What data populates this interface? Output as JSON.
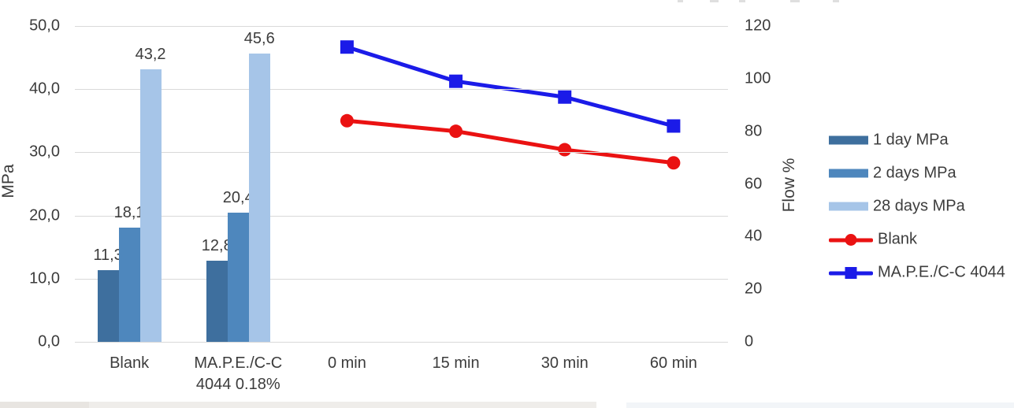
{
  "chart_data": {
    "type": "combo-bar-line",
    "legend_position": "right",
    "grid": true,
    "gridline_color": "#d9d9d9",
    "text_color": "#3c3c3c",
    "left_axis": {
      "label": "MPa",
      "min": 0,
      "max": 50,
      "ticks": [
        "50,0",
        "40,0",
        "30,0",
        "20,0",
        "10,0",
        "0,0"
      ]
    },
    "right_axis": {
      "label": "Flow %",
      "min": 0,
      "max": 120,
      "ticks": [
        "120",
        "100",
        "80",
        "60",
        "40",
        "20",
        "0"
      ]
    },
    "categories": [
      [
        "Blank"
      ],
      [
        "MA.P.E./C-C",
        "4044 0.18%"
      ],
      [
        "0 min"
      ],
      [
        "15 min"
      ],
      [
        "30 min"
      ],
      [
        "60 min"
      ]
    ],
    "bar_series": [
      {
        "name": "1 day MPa",
        "color": "#3e6f9e",
        "slots": [
          0,
          1
        ],
        "values": [
          11.3,
          12.8
        ],
        "value_labels": [
          "11,3",
          "12,8"
        ]
      },
      {
        "name": "2 days MPa",
        "color": "#4e87bd",
        "slots": [
          0,
          1
        ],
        "values": [
          18.1,
          20.4
        ],
        "value_labels": [
          "18,1",
          "20,4"
        ]
      },
      {
        "name": "28 days MPa",
        "color": "#a6c5e8",
        "slots": [
          0,
          1
        ],
        "values": [
          43.2,
          45.6
        ],
        "value_labels": [
          "43,2",
          "45,6"
        ]
      }
    ],
    "line_series": [
      {
        "name": "Blank",
        "color": "#ea1212",
        "marker": "circle",
        "slots": [
          2,
          3,
          4,
          5
        ],
        "values": [
          84,
          80,
          73,
          68
        ]
      },
      {
        "name": "MA.P.E./C-C 4044",
        "color": "#1b1be8",
        "marker": "square",
        "slots": [
          2,
          3,
          4,
          5
        ],
        "values": [
          112,
          99,
          93,
          82
        ]
      }
    ]
  }
}
